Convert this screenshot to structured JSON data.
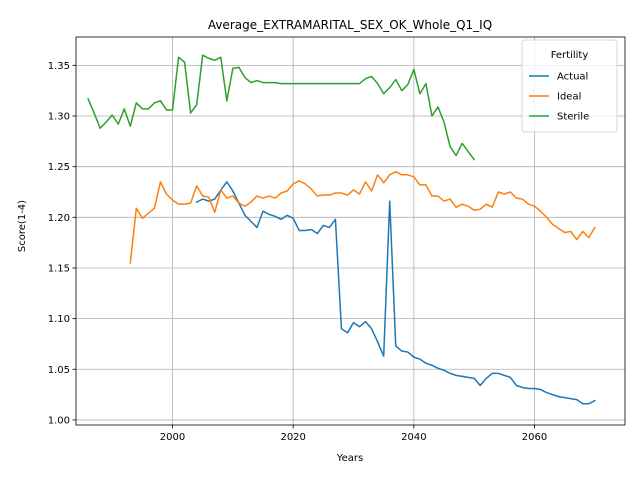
{
  "chart_data": {
    "type": "line",
    "title": "Average_EXTRAMARITAL_SEX_OK_Whole_Q1_IQ",
    "xlabel": "Years",
    "ylabel": "Score(1-4)",
    "xlim": [
      1984,
      2075
    ],
    "ylim": [
      0.995,
      1.378
    ],
    "xticks": [
      2000,
      2020,
      2040,
      2060
    ],
    "yticks": [
      1.0,
      1.05,
      1.1,
      1.15,
      1.2,
      1.25,
      1.3,
      1.35
    ],
    "grid": true,
    "legend": {
      "title": "Fertility",
      "position": "top-right"
    },
    "series": [
      {
        "name": "Actual",
        "color": "#1f77b4",
        "x": [
          2004,
          2005,
          2006,
          2007,
          2008,
          2009,
          2010,
          2011,
          2012,
          2013,
          2014,
          2015,
          2016,
          2017,
          2018,
          2019,
          2020,
          2021,
          2022,
          2023,
          2024,
          2025,
          2026,
          2027,
          2028,
          2029,
          2030,
          2031,
          2032,
          2033,
          2034,
          2035,
          2036,
          2037,
          2038,
          2039,
          2040,
          2041,
          2042,
          2043,
          2044,
          2045,
          2046,
          2047,
          2048,
          2049,
          2050,
          2051,
          2052,
          2053,
          2054,
          2055,
          2056,
          2057,
          2058,
          2059,
          2060,
          2061,
          2062,
          2063,
          2064,
          2065,
          2066,
          2067,
          2068,
          2069,
          2070
        ],
        "y": [
          1.215,
          1.218,
          1.216,
          1.218,
          1.227,
          1.235,
          1.226,
          1.214,
          1.202,
          1.196,
          1.19,
          1.206,
          1.203,
          1.201,
          1.198,
          1.202,
          1.199,
          1.187,
          1.187,
          1.188,
          1.184,
          1.192,
          1.19,
          1.198,
          1.09,
          1.086,
          1.096,
          1.092,
          1.097,
          1.09,
          1.077,
          1.063,
          1.216,
          1.073,
          1.068,
          1.067,
          1.062,
          1.06,
          1.056,
          1.054,
          1.051,
          1.049,
          1.046,
          1.044,
          1.043,
          1.042,
          1.041,
          1.034,
          1.041,
          1.046,
          1.046,
          1.044,
          1.042,
          1.034,
          1.032,
          1.031,
          1.031,
          1.03,
          1.027,
          1.025,
          1.023,
          1.022,
          1.021,
          1.02,
          1.016,
          1.016,
          1.019
        ]
      },
      {
        "name": "Ideal",
        "color": "#ff7f0e",
        "x": [
          1993,
          1994,
          1995,
          1996,
          1997,
          1998,
          1999,
          2000,
          2001,
          2002,
          2003,
          2004,
          2005,
          2006,
          2007,
          2008,
          2009,
          2010,
          2011,
          2012,
          2013,
          2014,
          2015,
          2016,
          2017,
          2018,
          2019,
          2020,
          2021,
          2022,
          2023,
          2024,
          2025,
          2026,
          2027,
          2028,
          2029,
          2030,
          2031,
          2032,
          2033,
          2034,
          2035,
          2036,
          2037,
          2038,
          2039,
          2040,
          2041,
          2042,
          2043,
          2044,
          2045,
          2046,
          2047,
          2048,
          2049,
          2050,
          2051,
          2052,
          2053,
          2054,
          2055,
          2056,
          2057,
          2058,
          2059,
          2060,
          2061,
          2062,
          2063,
          2064,
          2065,
          2066,
          2067,
          2068,
          2069,
          2070
        ],
        "y": [
          1.155,
          1.209,
          1.199,
          1.204,
          1.209,
          1.235,
          1.223,
          1.217,
          1.213,
          1.213,
          1.214,
          1.231,
          1.221,
          1.22,
          1.205,
          1.227,
          1.219,
          1.221,
          1.214,
          1.211,
          1.215,
          1.221,
          1.219,
          1.221,
          1.219,
          1.224,
          1.226,
          1.233,
          1.236,
          1.233,
          1.228,
          1.221,
          1.222,
          1.222,
          1.224,
          1.224,
          1.222,
          1.227,
          1.223,
          1.235,
          1.226,
          1.242,
          1.234,
          1.242,
          1.245,
          1.242,
          1.242,
          1.24,
          1.232,
          1.232,
          1.221,
          1.221,
          1.216,
          1.218,
          1.21,
          1.213,
          1.211,
          1.207,
          1.208,
          1.213,
          1.21,
          1.225,
          1.223,
          1.225,
          1.219,
          1.218,
          1.213,
          1.211,
          1.206,
          1.2,
          1.193,
          1.189,
          1.185,
          1.186,
          1.178,
          1.186,
          1.18,
          1.19
        ]
      },
      {
        "name": "Sterile",
        "color": "#2ca02c",
        "x": [
          1986,
          1987,
          1988,
          1989,
          1990,
          1991,
          1992,
          1993,
          1994,
          1995,
          1996,
          1997,
          1998,
          1999,
          2000,
          2001,
          2002,
          2003,
          2004,
          2005,
          2006,
          2007,
          2008,
          2009,
          2010,
          2011,
          2012,
          2013,
          2014,
          2015,
          2016,
          2017,
          2018,
          2019,
          2020,
          2021,
          2022,
          2023,
          2024,
          2025,
          2026,
          2027,
          2028,
          2029,
          2030,
          2031,
          2032,
          2033,
          2034,
          2035,
          2036,
          2037,
          2038,
          2039,
          2040,
          2041,
          2042,
          2043,
          2044,
          2045,
          2046,
          2047,
          2048,
          2049,
          2050
        ],
        "y": [
          1.317,
          1.303,
          1.288,
          1.294,
          1.301,
          1.292,
          1.307,
          1.29,
          1.313,
          1.307,
          1.307,
          1.313,
          1.315,
          1.306,
          1.306,
          1.358,
          1.353,
          1.303,
          1.311,
          1.36,
          1.357,
          1.355,
          1.358,
          1.315,
          1.347,
          1.348,
          1.338,
          1.333,
          1.335,
          1.333,
          1.333,
          1.333,
          1.332,
          1.332,
          1.332,
          1.332,
          1.332,
          1.332,
          1.332,
          1.332,
          1.332,
          1.332,
          1.332,
          1.332,
          1.332,
          1.332,
          1.337,
          1.339,
          1.332,
          1.322,
          1.328,
          1.336,
          1.325,
          1.331,
          1.346,
          1.322,
          1.332,
          1.3,
          1.309,
          1.294,
          1.27,
          1.261,
          1.273,
          1.265,
          1.257
        ]
      }
    ]
  }
}
